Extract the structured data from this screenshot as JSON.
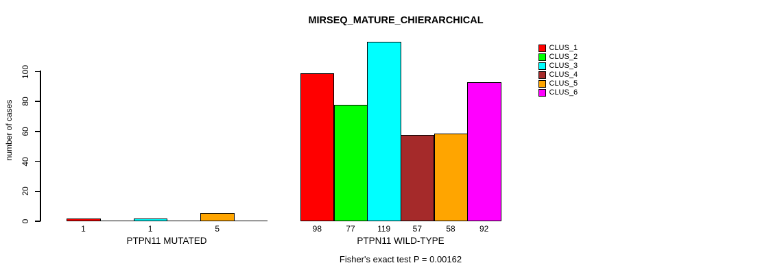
{
  "chart_data": {
    "type": "bar",
    "title": "MIRSEQ_MATURE_CHIERARCHICAL",
    "ylabel": "number of cases",
    "xlabel": "",
    "ylim": [
      0,
      119
    ],
    "yticks": [
      0,
      20,
      40,
      60,
      80,
      100
    ],
    "grid": false,
    "legend_position": "right",
    "background": "#FFFFFF",
    "axis_color": "#000000",
    "legend": [
      {
        "label": "CLUS_1",
        "color": "#FF0000"
      },
      {
        "label": "CLUS_2",
        "color": "#00FF00"
      },
      {
        "label": "CLUS_3",
        "color": "#00FFFF"
      },
      {
        "label": "CLUS_4",
        "color": "#A52A2A"
      },
      {
        "label": "CLUS_5",
        "color": "#FFA500"
      },
      {
        "label": "CLUS_6",
        "color": "#FF00FF"
      }
    ],
    "groups": [
      {
        "label": "PTPN11 MUTATED",
        "bars": [
          {
            "cluster": "CLUS_1",
            "value": 1,
            "value_label": "1",
            "color": "#FF0000"
          },
          {
            "cluster": "CLUS_2",
            "value": 0,
            "value_label": "",
            "color": "#00FF00"
          },
          {
            "cluster": "CLUS_3",
            "value": 1,
            "value_label": "1",
            "color": "#00FFFF"
          },
          {
            "cluster": "CLUS_4",
            "value": 0,
            "value_label": "",
            "color": "#A52A2A"
          },
          {
            "cluster": "CLUS_5",
            "value": 5,
            "value_label": "5",
            "color": "#FFA500"
          },
          {
            "cluster": "CLUS_6",
            "value": 0,
            "value_label": "",
            "color": "#FF00FF"
          }
        ]
      },
      {
        "label": "PTPN11 WILD-TYPE",
        "bars": [
          {
            "cluster": "CLUS_1",
            "value": 98,
            "value_label": "98",
            "color": "#FF0000"
          },
          {
            "cluster": "CLUS_2",
            "value": 77,
            "value_label": "77",
            "color": "#00FF00"
          },
          {
            "cluster": "CLUS_3",
            "value": 119,
            "value_label": "119",
            "color": "#00FFFF"
          },
          {
            "cluster": "CLUS_4",
            "value": 57,
            "value_label": "57",
            "color": "#A52A2A"
          },
          {
            "cluster": "CLUS_5",
            "value": 58,
            "value_label": "58",
            "color": "#FFA500"
          },
          {
            "cluster": "CLUS_6",
            "value": 92,
            "value_label": "92",
            "color": "#FF00FF"
          }
        ]
      }
    ],
    "footnote": "Fisher's exact test P = 0.00162"
  }
}
